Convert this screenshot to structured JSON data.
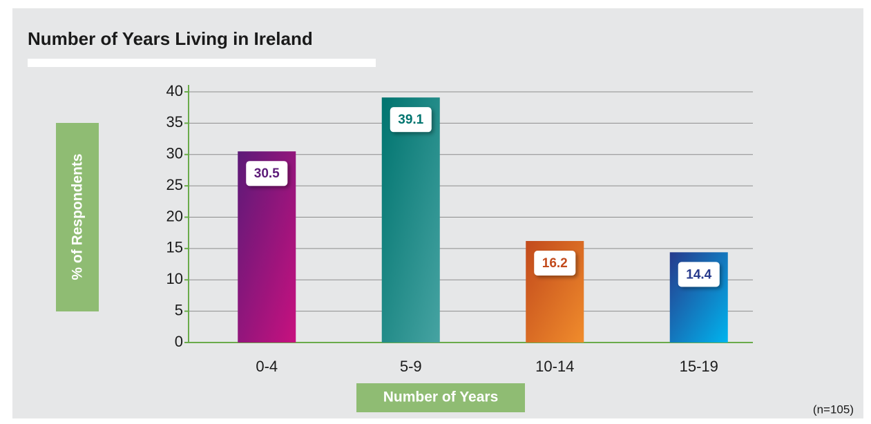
{
  "chart_data": {
    "type": "bar",
    "title": "Number of Years Living in Ireland",
    "y_label": "% of Respondents",
    "x_label": "Number of Years",
    "note": "(n=105)",
    "categories": [
      "0-4",
      "5-9",
      "10-14",
      "15-19"
    ],
    "values": [
      30.5,
      39.1,
      16.2,
      14.4
    ],
    "colors": [
      [
        "#5c1a78",
        "#c8117f"
      ],
      [
        "#00746f",
        "#46a3a2"
      ],
      [
        "#c24a1c",
        "#f08c2c"
      ],
      [
        "#273a8c",
        "#00b4ee"
      ]
    ],
    "ylim": [
      0,
      40
    ],
    "yticks": [
      0,
      5,
      10,
      15,
      20,
      25,
      30,
      35,
      40
    ],
    "grid": true
  }
}
